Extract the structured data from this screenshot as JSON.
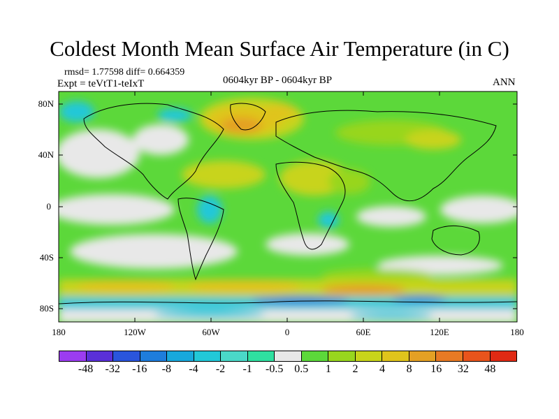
{
  "title": "Coldest Month Mean Surface Air Temperature (in C)",
  "stats": "rmsd= 1.77598 diff= 0.664359",
  "experiment": "Expt = teVtT1-teIxT",
  "period": "0604kyr BP - 0604kyr BP",
  "season": "ANN",
  "lat_labels": [
    "80N",
    "40N",
    "0",
    "40S",
    "80S"
  ],
  "lon_labels": [
    "180",
    "120W",
    "60W",
    "0",
    "60E",
    "120E",
    "180"
  ],
  "colorbar": {
    "colors": [
      "#9b3cf0",
      "#5a30d8",
      "#2a55dc",
      "#1e7ddc",
      "#18a8dc",
      "#22c8d8",
      "#4ad8c8",
      "#2fe0a0",
      "#e8e8e8",
      "#5cd83a",
      "#98d61e",
      "#c8d41a",
      "#e0c41c",
      "#e4a024",
      "#e87a24",
      "#e8541c",
      "#e02a14"
    ],
    "labels": [
      "-48",
      "-32",
      "-16",
      "-8",
      "-4",
      "-2",
      "-1",
      "-0.5",
      "0.5",
      "1",
      "2",
      "4",
      "8",
      "16",
      "32",
      "48"
    ]
  }
}
